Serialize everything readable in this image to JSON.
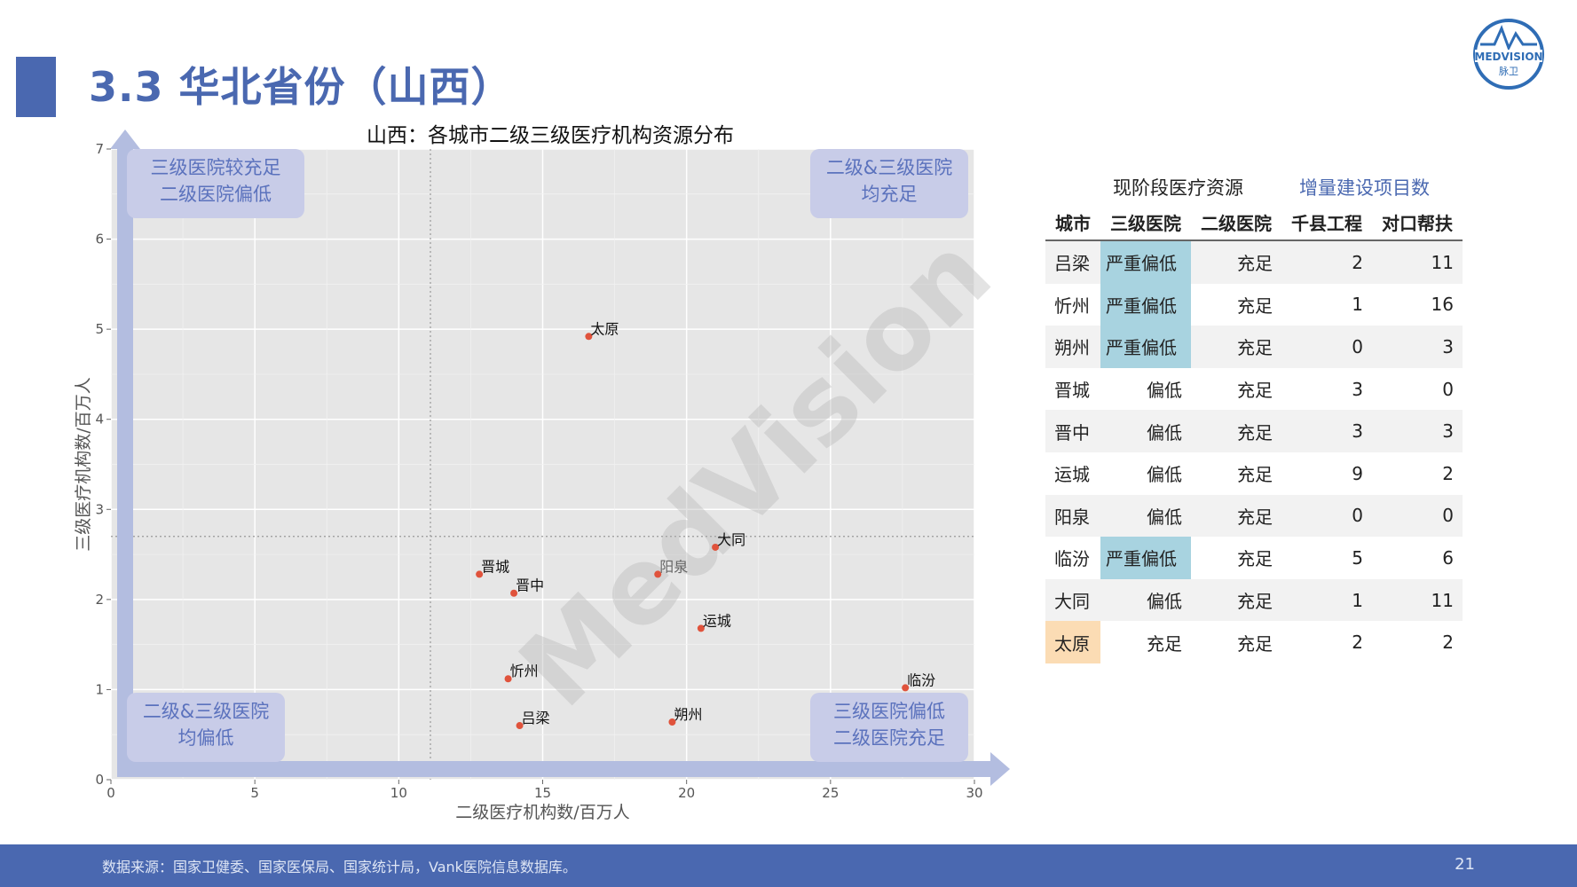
{
  "page": {
    "title": "3.3 华北省份（山西）",
    "footer_source": "数据来源：国家卫健委、国家医保局、国家统计局，Vank医院信息数据库。",
    "page_number": "21",
    "logo_text": "MEDVISION",
    "logo_sub": "脉卫",
    "watermark": "MedVision"
  },
  "chart_data": {
    "type": "scatter",
    "title": "山西：各城市二级三级医疗机构资源分布",
    "xlabel": "二级医疗机构数/百万人",
    "ylabel": "三级医疗机构数/百万人",
    "xlim": [
      0,
      30
    ],
    "ylim": [
      0,
      7
    ],
    "xticks": [
      0,
      5,
      10,
      15,
      20,
      25,
      30
    ],
    "yticks": [
      0,
      1,
      2,
      3,
      4,
      5,
      6,
      7
    ],
    "x_ref": 11.1,
    "y_ref": 2.7,
    "points": [
      {
        "label": "太原",
        "x": 16.6,
        "y": 4.92
      },
      {
        "label": "大同",
        "x": 21.0,
        "y": 2.58
      },
      {
        "label": "阳泉",
        "x": 19.0,
        "y": 2.28
      },
      {
        "label": "晋城",
        "x": 12.8,
        "y": 2.28
      },
      {
        "label": "晋中",
        "x": 14.0,
        "y": 2.07
      },
      {
        "label": "运城",
        "x": 20.5,
        "y": 1.68
      },
      {
        "label": "忻州",
        "x": 13.8,
        "y": 1.12
      },
      {
        "label": "临汾",
        "x": 27.6,
        "y": 1.02
      },
      {
        "label": "吕梁",
        "x": 14.2,
        "y": 0.6
      },
      {
        "label": "朔州",
        "x": 19.5,
        "y": 0.64
      }
    ],
    "quadrants": {
      "top_left": [
        "三级医院较充足",
        "二级医院偏低"
      ],
      "top_right": [
        "二级&三级医院",
        "均充足"
      ],
      "bottom_left": [
        "二级&三级医院",
        "均偏低"
      ],
      "bottom_right": [
        "三级医院偏低",
        "二级医院充足"
      ]
    },
    "grid": true,
    "point_color": "#e0533c"
  },
  "table": {
    "group_current": "现阶段医疗资源",
    "group_new": "增量建设项目数",
    "headers": [
      "城市",
      "三级医院",
      "二级医院",
      "千县工程",
      "对口帮扶"
    ],
    "rows": [
      [
        "吕梁",
        "严重偏低",
        "充足",
        "2",
        "11"
      ],
      [
        "忻州",
        "严重偏低",
        "充足",
        "1",
        "16"
      ],
      [
        "朔州",
        "严重偏低",
        "充足",
        "0",
        "3"
      ],
      [
        "晋城",
        "偏低",
        "充足",
        "3",
        "0"
      ],
      [
        "晋中",
        "偏低",
        "充足",
        "3",
        "3"
      ],
      [
        "运城",
        "偏低",
        "充足",
        "9",
        "2"
      ],
      [
        "阳泉",
        "偏低",
        "充足",
        "0",
        "0"
      ],
      [
        "临汾",
        "严重偏低",
        "充足",
        "5",
        "6"
      ],
      [
        "大同",
        "偏低",
        "充足",
        "1",
        "11"
      ],
      [
        "太原",
        "充足",
        "充足",
        "2",
        "2"
      ]
    ],
    "highlight_blue": "#a8d3e0",
    "highlight_orange": "#fbdcb4"
  }
}
